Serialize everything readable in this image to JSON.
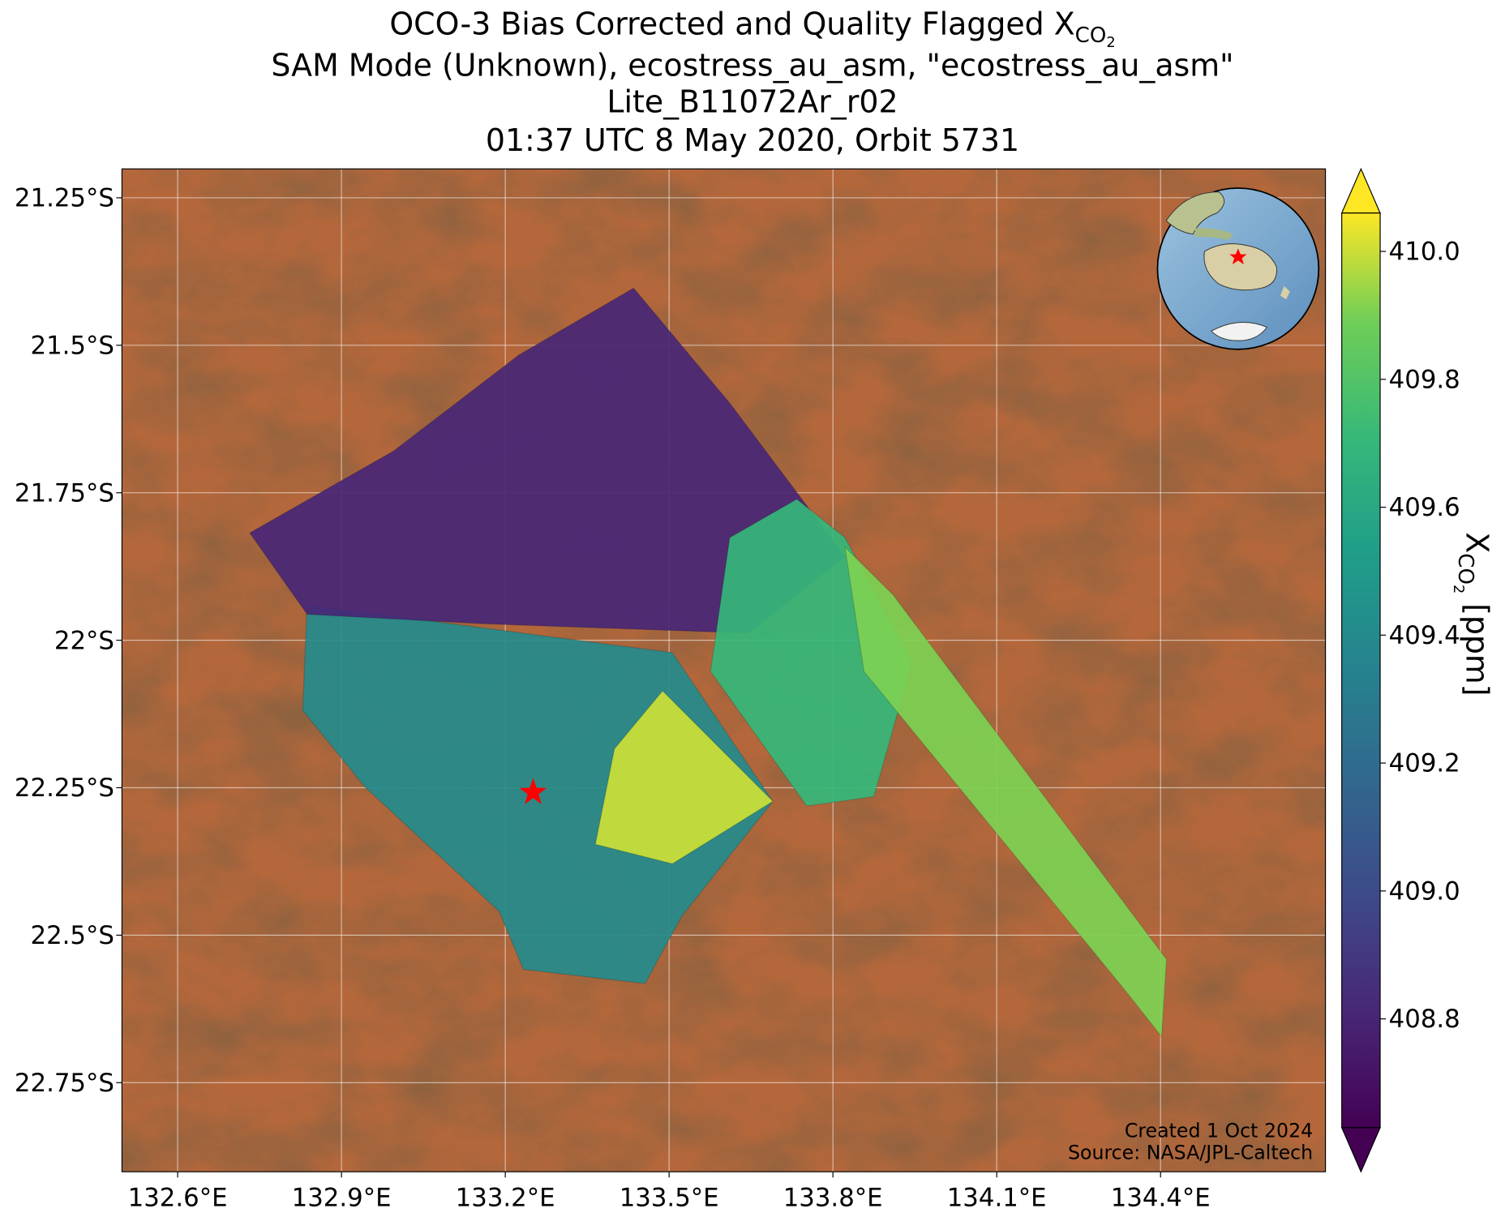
{
  "chart_data": {
    "type": "map",
    "title_lines": [
      "OCO-3 Bias Corrected and Quality Flagged X",
      "SAM Mode (Unknown), ecostress_au_asm, \"ecostress_au_asm\"",
      "Lite_B11072Ar_r02",
      "01:37 UTC 8 May 2020, Orbit 5731"
    ],
    "species": "CO",
    "species_sub": "2",
    "xlim": [
      132.498,
      134.702
    ],
    "ylim": [
      -22.901,
      -21.201
    ],
    "xticks": [
      {
        "value": 132.6,
        "label": "132.6°E"
      },
      {
        "value": 132.9,
        "label": "132.9°E"
      },
      {
        "value": 133.2,
        "label": "133.2°E"
      },
      {
        "value": 133.5,
        "label": "133.5°E"
      },
      {
        "value": 133.8,
        "label": "133.8°E"
      },
      {
        "value": 134.1,
        "label": "134.1°E"
      },
      {
        "value": 134.4,
        "label": "134.4°E"
      }
    ],
    "yticks": [
      {
        "value": -21.25,
        "label": "21.25°S"
      },
      {
        "value": -21.5,
        "label": "21.5°S"
      },
      {
        "value": -21.75,
        "label": "21.75°S"
      },
      {
        "value": -22,
        "label": "22°S"
      },
      {
        "value": -22.25,
        "label": "22.25°S"
      },
      {
        "value": -22.5,
        "label": "22.5°S"
      },
      {
        "value": -22.75,
        "label": "22.75°S"
      }
    ],
    "grid": true,
    "clim": [
      408.63,
      410.06
    ],
    "cticks": [
      408.8,
      {
        "value": 409.0,
        "label": "409.0"
      },
      409.2,
      409.4,
      409.6,
      409.8,
      {
        "value": 410.0,
        "label": "410.0"
      }
    ],
    "cbar_label": "X",
    "cbar_unit": "[ppm]",
    "regions": [
      {
        "lon": [
          132.837,
          133.506,
          133.69,
          133.523,
          133.456,
          133.233,
          133.189,
          132.943,
          132.829
        ],
        "lat": [
          -21.94,
          -22.021,
          -22.273,
          -22.468,
          -22.582,
          -22.558,
          -22.46,
          -22.249,
          -22.119
        ],
        "value": 409.4
      },
      {
        "lon": [
          132.732,
          132.996,
          133.224,
          133.435,
          133.611,
          133.822,
          133.646,
          133.154,
          132.837
        ],
        "lat": [
          -21.818,
          -21.679,
          -21.517,
          -21.403,
          -21.598,
          -21.858,
          -21.988,
          -21.972,
          -21.956
        ],
        "value": 408.8
      },
      {
        "lon": [
          133.734,
          133.822,
          133.945,
          133.875,
          133.752,
          133.576,
          133.611
        ],
        "lat": [
          -21.761,
          -21.826,
          -22.037,
          -22.265,
          -22.281,
          -22.053,
          -21.826
        ],
        "value": 409.7
      },
      {
        "lon": [
          133.822,
          133.91,
          134.411,
          134.402,
          134.332,
          133.857
        ],
        "lat": [
          -21.842,
          -21.923,
          -22.541,
          -22.672,
          -22.59,
          -22.053
        ],
        "value": 409.9
      },
      {
        "lon": [
          133.488,
          133.69,
          133.506,
          133.365,
          133.4
        ],
        "lat": [
          -22.086,
          -22.273,
          -22.379,
          -22.346,
          -22.184
        ],
        "value": 410.0
      }
    ],
    "target": {
      "lon": 133.251,
      "lat": -22.258,
      "color": "#ff0000"
    },
    "credits": [
      "Created 1 Oct 2024",
      "Source: NASA/JPL-Caltech"
    ]
  }
}
